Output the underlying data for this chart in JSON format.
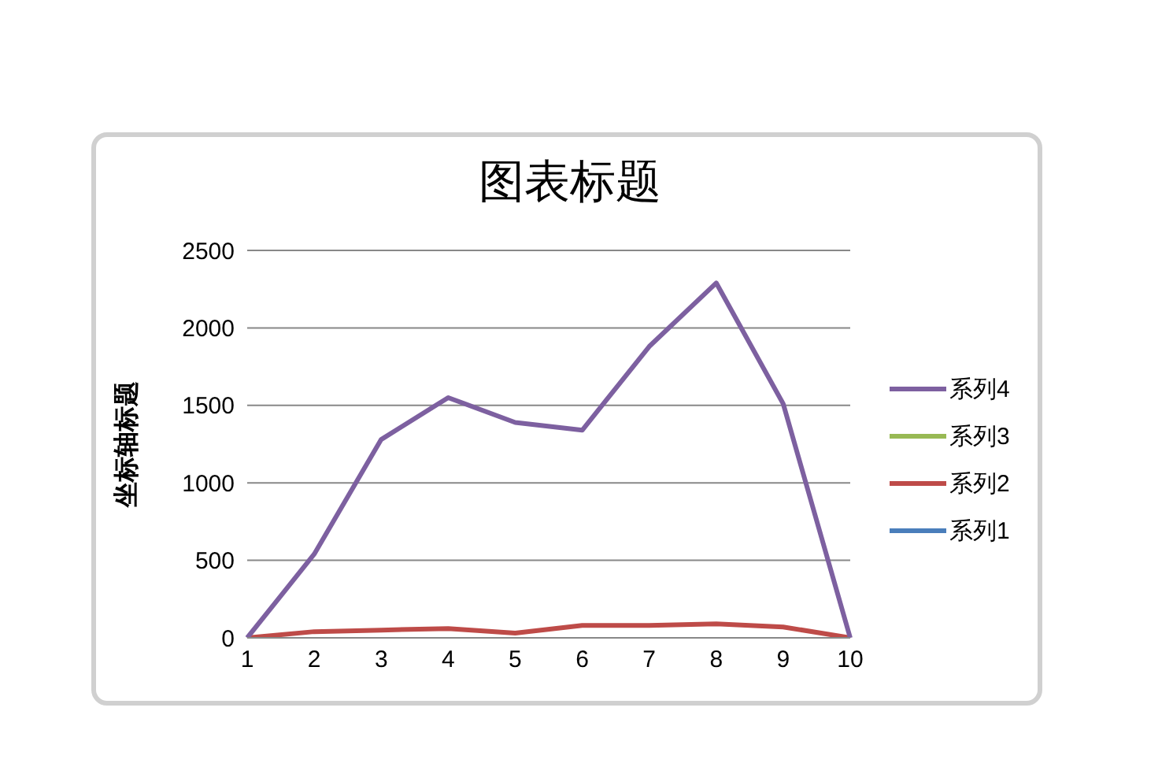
{
  "chart_data": {
    "type": "line",
    "title": "图表标题",
    "ylabel": "坐标轴标题",
    "categories": [
      "1",
      "2",
      "3",
      "4",
      "5",
      "6",
      "7",
      "8",
      "9",
      "10"
    ],
    "series": [
      {
        "name": "系列1",
        "color": "#4a7ebb",
        "values": [
          null,
          null,
          null,
          null,
          null,
          null,
          null,
          null,
          null,
          null
        ]
      },
      {
        "name": "系列2",
        "color": "#be4b48",
        "values": [
          0,
          40,
          50,
          60,
          30,
          80,
          80,
          90,
          70,
          0
        ]
      },
      {
        "name": "系列3",
        "color": "#98b954",
        "values": [
          null,
          null,
          null,
          null,
          null,
          null,
          null,
          null,
          null,
          null
        ]
      },
      {
        "name": "系列4",
        "color": "#7d60a0",
        "values": [
          0,
          540,
          1280,
          1550,
          1390,
          1340,
          1880,
          2290,
          1510,
          0
        ]
      }
    ],
    "ylim": [
      0,
      2500
    ],
    "yticks": [
      0,
      500,
      1000,
      1500,
      2000,
      2500
    ],
    "grid": "y",
    "legend": "right",
    "marker": "none",
    "line_style": "solid"
  }
}
